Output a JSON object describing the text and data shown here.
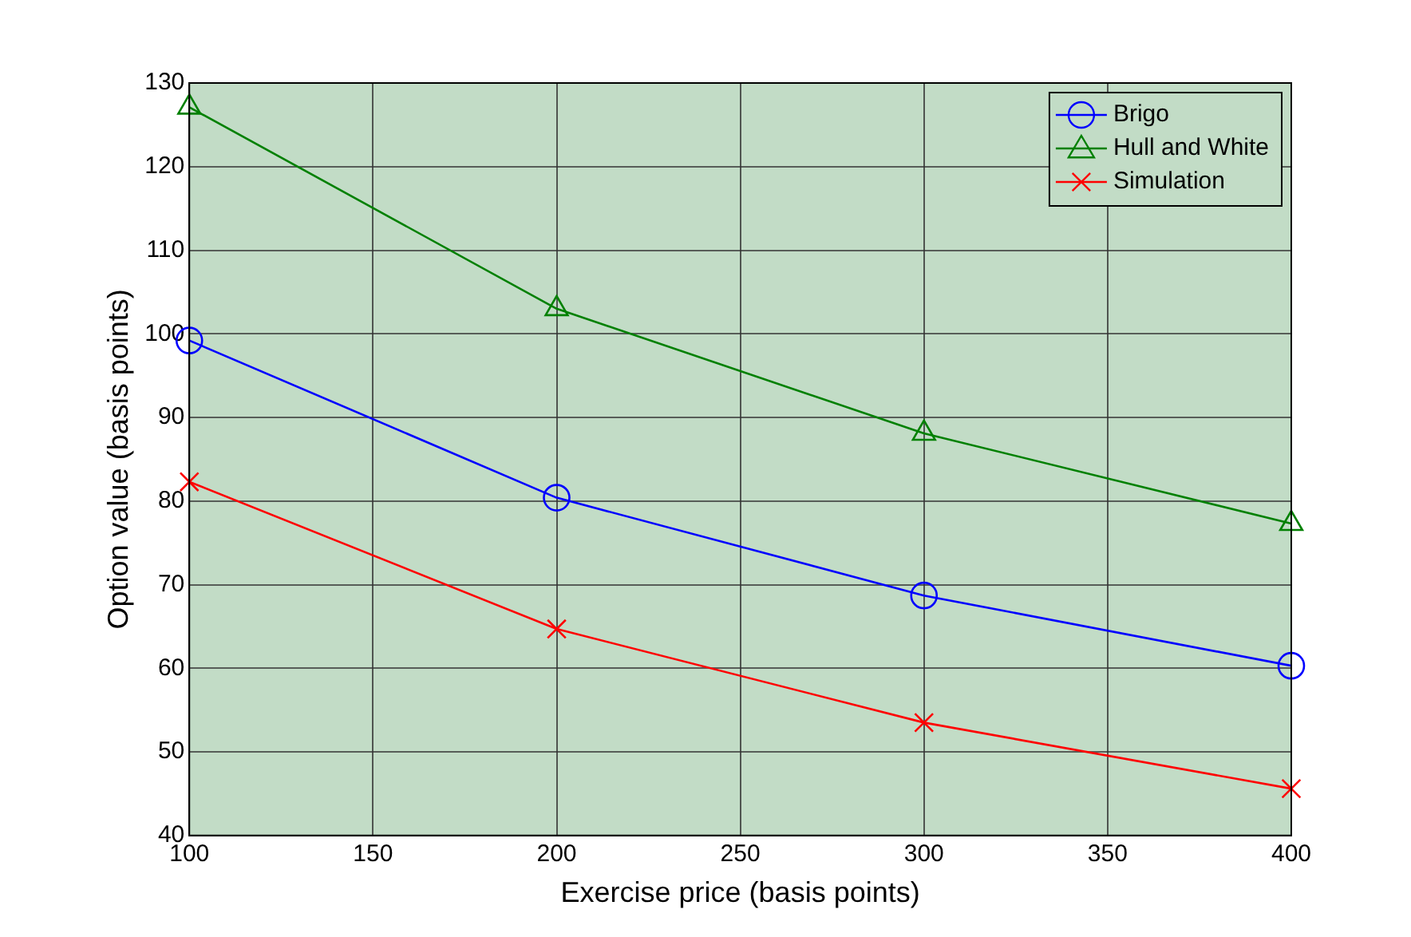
{
  "chart_data": {
    "type": "line",
    "xlabel": "Exercise price (basis points)",
    "ylabel": "Option value (basis points)",
    "x": [
      100,
      200,
      300,
      400
    ],
    "series": [
      {
        "name": "Brigo",
        "color": "#0000ff",
        "marker": "circle",
        "values": [
          99.2,
          80.4,
          68.7,
          60.3
        ]
      },
      {
        "name": "Hull and White",
        "color": "#008000",
        "marker": "triangle",
        "values": [
          127.1,
          103,
          88.1,
          77.3
        ]
      },
      {
        "name": "Simulation",
        "color": "#ff0000",
        "marker": "cross",
        "values": [
          82.3,
          64.7,
          53.5,
          45.6
        ]
      }
    ],
    "xlim": [
      100,
      400
    ],
    "xticks": [
      100,
      150,
      200,
      250,
      300,
      350,
      400
    ],
    "ylim": [
      40,
      130
    ],
    "yticks": [
      40,
      50,
      60,
      70,
      80,
      90,
      100,
      110,
      120,
      130
    ],
    "grid": true,
    "legend": "top right",
    "line_style": "solid"
  }
}
